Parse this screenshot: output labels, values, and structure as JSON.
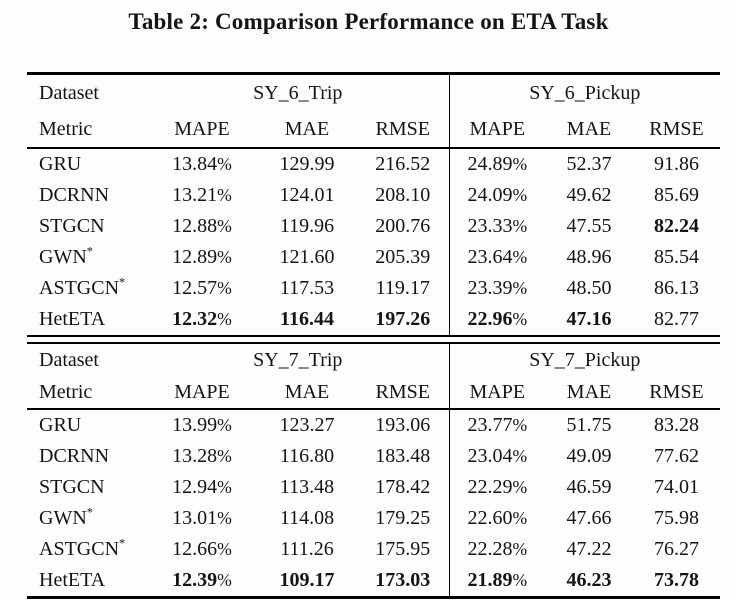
{
  "title": "Table 2: Comparison Performance on ETA Task",
  "pct": "%",
  "colors": {
    "text": "#141414",
    "rule": "#000000",
    "background": "#fdfdfd"
  },
  "sections": [
    {
      "dataset_label": "Dataset",
      "metric_label": "Metric",
      "groups": [
        {
          "name": "SY_6_Trip"
        },
        {
          "name": "SY_6_Pickup"
        }
      ],
      "metric_headers": [
        "MAPE",
        "MAE",
        "RMSE",
        "MAPE",
        "MAE",
        "RMSE"
      ],
      "rows": [
        {
          "model": "GRU",
          "sup": "",
          "mape1": "13.84",
          "mae1": "129.99",
          "rmse1": "216.52",
          "mape2": "24.89",
          "mae2": "52.37",
          "rmse2": "91.86"
        },
        {
          "model": "DCRNN",
          "sup": "",
          "mape1": "13.21",
          "mae1": "124.01",
          "rmse1": "208.10",
          "mape2": "24.09",
          "mae2": "49.62",
          "rmse2": "85.69"
        },
        {
          "model": "STGCN",
          "sup": "",
          "mape1": "12.88",
          "mae1": "119.96",
          "rmse1": "200.76",
          "mape2": "23.33",
          "mae2": "47.55",
          "rmse2": "82.24"
        },
        {
          "model": "GWN",
          "sup": "*",
          "mape1": "12.89",
          "mae1": "121.60",
          "rmse1": "205.39",
          "mape2": "23.64",
          "mae2": "48.96",
          "rmse2": "85.54"
        },
        {
          "model": "ASTGCN",
          "sup": "*",
          "mape1": "12.57",
          "mae1": "117.53",
          "rmse1": "119.17",
          "mape2": "23.39",
          "mae2": "48.50",
          "rmse2": "86.13"
        },
        {
          "model": "HetETA",
          "sup": "",
          "mape1": "12.32",
          "mae1": "116.44",
          "rmse1": "197.26",
          "mape2": "22.96",
          "mae2": "47.16",
          "rmse2": "82.77"
        }
      ]
    },
    {
      "dataset_label": "Dataset",
      "metric_label": "Metric",
      "groups": [
        {
          "name": "SY_7_Trip"
        },
        {
          "name": "SY_7_Pickup"
        }
      ],
      "metric_headers": [
        "MAPE",
        "MAE",
        "RMSE",
        "MAPE",
        "MAE",
        "RMSE"
      ],
      "rows": [
        {
          "model": "GRU",
          "sup": "",
          "mape1": "13.99",
          "mae1": "123.27",
          "rmse1": "193.06",
          "mape2": "23.77",
          "mae2": "51.75",
          "rmse2": "83.28"
        },
        {
          "model": "DCRNN",
          "sup": "",
          "mape1": "13.28",
          "mae1": "116.80",
          "rmse1": "183.48",
          "mape2": "23.04",
          "mae2": "49.09",
          "rmse2": "77.62"
        },
        {
          "model": "STGCN",
          "sup": "",
          "mape1": "12.94",
          "mae1": "113.48",
          "rmse1": "178.42",
          "mape2": "22.29",
          "mae2": "46.59",
          "rmse2": "74.01"
        },
        {
          "model": "GWN",
          "sup": "*",
          "mape1": "13.01",
          "mae1": "114.08",
          "rmse1": "179.25",
          "mape2": "22.60",
          "mae2": "47.66",
          "rmse2": "75.98"
        },
        {
          "model": "ASTGCN",
          "sup": "*",
          "mape1": "12.66",
          "mae1": "111.26",
          "rmse1": "175.95",
          "mape2": "22.28",
          "mae2": "47.22",
          "rmse2": "76.27"
        },
        {
          "model": "HetETA",
          "sup": "",
          "mape1": "12.39",
          "mae1": "109.17",
          "rmse1": "173.03",
          "mape2": "21.89",
          "mae2": "46.23",
          "rmse2": "73.78"
        }
      ]
    }
  ]
}
